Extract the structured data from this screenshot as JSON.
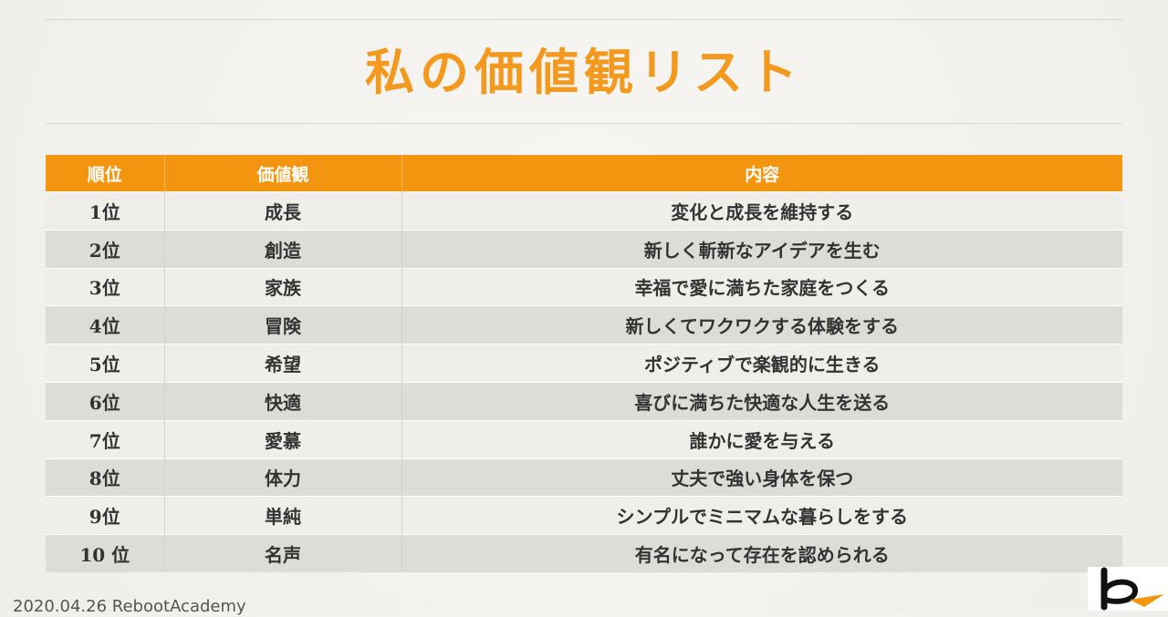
{
  "title": "私の価値観リスト",
  "table": {
    "headers": [
      "順位",
      "価値観",
      "内容"
    ],
    "rows": [
      {
        "rank": "1位",
        "value": "成長",
        "description": "変化と成長を維持する"
      },
      {
        "rank": "2位",
        "value": "創造",
        "description": "新しく斬新なアイデアを生む"
      },
      {
        "rank": "3位",
        "value": "家族",
        "description": "幸福で愛に満ちた家庭をつくる"
      },
      {
        "rank": "4位",
        "value": "冒険",
        "description": "新しくてワクワクする体験をする"
      },
      {
        "rank": "5位",
        "value": "希望",
        "description": "ポジティブで楽観的に生きる"
      },
      {
        "rank": "6位",
        "value": "快適",
        "description": "喜びに満ちた快適な人生を送る"
      },
      {
        "rank": "7位",
        "value": "愛慕",
        "description": "誰かに愛を与える"
      },
      {
        "rank": "8位",
        "value": "体力",
        "description": "丈夫で強い身体を保つ"
      },
      {
        "rank": "9位",
        "value": "単純",
        "description": "シンプルでミニマムな暮らしをする"
      },
      {
        "rank": "10 位",
        "value": "名声",
        "description": "有名になって存在を認められる"
      }
    ]
  },
  "footer": {
    "text": "2020.04.26 RebootAcademy"
  },
  "colors": {
    "accent": "#f4950f",
    "title": "#f39a1e",
    "row_odd": "#efeeea",
    "row_even": "#dddcd7"
  }
}
